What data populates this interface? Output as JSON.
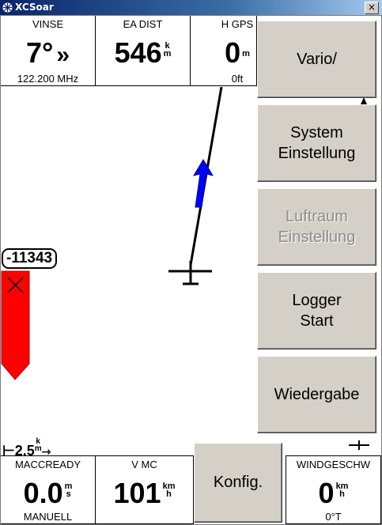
{
  "window": {
    "title": "XCSoar",
    "close_glyph": "×"
  },
  "infoboxes_top": [
    {
      "title": "VINSE",
      "value": "7°",
      "arrow": "»",
      "unit_top": "",
      "unit_bottom": "",
      "comment": "122.200 MHz"
    },
    {
      "title": "EA DIST",
      "value": "546",
      "unit_top": "k",
      "unit_bottom": "m",
      "comment": ""
    },
    {
      "title": "H GPS",
      "value": "0",
      "unit_top": "",
      "unit_bottom": "m",
      "comment": "0ft"
    }
  ],
  "infoboxes_bottom": [
    {
      "title": "MACCREADY",
      "value": "0.0",
      "unit_top": "m",
      "unit_bottom": "s",
      "comment": "MANUELL"
    },
    {
      "title": "V MC",
      "value": "101",
      "unit_top": "km",
      "unit_bottom": "h",
      "comment": ""
    },
    {
      "title": "WINDGESCHW",
      "value": "0",
      "unit_top": "km",
      "unit_bottom": "h",
      "comment": "0°T"
    }
  ],
  "menu": [
    {
      "label": "Vario/",
      "enabled": true
    },
    {
      "label": "System\nEinstellung",
      "enabled": true
    },
    {
      "label": "Luftraum\nEinstellung",
      "enabled": false
    },
    {
      "label": "Logger\nStart",
      "enabled": true
    },
    {
      "label": "Wiedergabe",
      "enabled": true
    }
  ],
  "konfig_label": "Konfig.",
  "map": {
    "altitude_label": "-11343",
    "scale_value": "2.5",
    "scale_unit_top": "k",
    "scale_unit_bottom": "m",
    "colors": {
      "wind_arrow": "#0000ff",
      "glide_bar": "#ff0000",
      "track_line": "#000000"
    }
  },
  "icons": [
    "xcsoar-app-icon",
    "close-icon",
    "aircraft-icon",
    "wind-arrow-icon",
    "final-glide-bar-icon",
    "scale-bar-icon",
    "small-aircraft-icon"
  ]
}
